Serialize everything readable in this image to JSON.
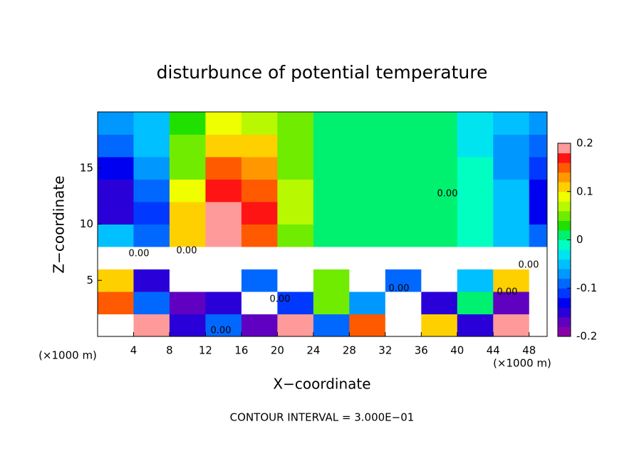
{
  "chart_data": {
    "type": "contour",
    "title": "disturbunce of potential temperature",
    "x_label": "X−coordinate",
    "y_label": "Z−coordinate",
    "x_unit_labels": [
      "(×1000 m)",
      "(×1000 m)"
    ],
    "footer": "CONTOUR INTERVAL = 3.000E−01",
    "contour_labels": [
      "0.00",
      "0.00",
      "0.00",
      "0.00",
      "0.00",
      "0.00",
      "0.00",
      "0.00"
    ],
    "xlim": [
      0,
      50
    ],
    "xticks": [
      4,
      8,
      12,
      16,
      20,
      24,
      28,
      32,
      36,
      40,
      44,
      48
    ],
    "ylim": [
      0,
      20
    ],
    "yticks": [
      5,
      10,
      15
    ],
    "clim": [
      -0.2,
      0.2
    ],
    "cticks": [
      -0.2,
      -0.1,
      0,
      0.1,
      0.2
    ],
    "colors": [
      "#8a00a8",
      "#6000c0",
      "#2a00d8",
      "#0000f0",
      "#0038ff",
      "#0068ff",
      "#0098ff",
      "#00c0ff",
      "#00e4f0",
      "#00ffc0",
      "#00f070",
      "#20e000",
      "#70ec00",
      "#b8f800",
      "#f0ff00",
      "#ffd000",
      "#ff9800",
      "#ff5a00",
      "#ff1414",
      "#ff9a9a"
    ],
    "out_of_range_color": "#ffffff",
    "x": [
      2,
      6,
      10,
      14,
      18,
      22,
      26,
      30,
      34,
      38,
      42,
      46,
      50
    ],
    "y": [
      1,
      3,
      5,
      7,
      9,
      11,
      13,
      15,
      17,
      19
    ],
    "z": [
      [
        0.3,
        0.2,
        -0.15,
        -0.1,
        -0.18,
        0.2,
        -0.1,
        0.15,
        0.3,
        0.1,
        -0.15,
        0.2,
        0.3
      ],
      [
        0.15,
        -0.1,
        -0.18,
        -0.15,
        0.3,
        -0.12,
        0.05,
        -0.08,
        0.3,
        -0.15,
        0.02,
        -0.18,
        0.3
      ],
      [
        0.1,
        -0.15,
        0.3,
        0.3,
        -0.1,
        0.3,
        0.05,
        0.3,
        -0.1,
        0.3,
        -0.05,
        0.1,
        0.3
      ],
      [
        0.3,
        0.3,
        0.3,
        0.3,
        0.3,
        0.3,
        0.3,
        0.3,
        0.3,
        0.3,
        0.3,
        0.3,
        0.3
      ],
      [
        -0.05,
        -0.1,
        0.12,
        0.2,
        0.15,
        0.05,
        0.01,
        0,
        0,
        0,
        -0.01,
        -0.04,
        -0.1
      ],
      [
        -0.16,
        -0.12,
        0.1,
        0.19,
        0.16,
        0.06,
        0.02,
        0,
        0.01,
        0,
        -0.01,
        -0.05,
        -0.14
      ],
      [
        -0.15,
        -0.1,
        0.08,
        0.17,
        0.15,
        0.06,
        0.02,
        0.01,
        0.01,
        0,
        -0.02,
        -0.06,
        -0.13
      ],
      [
        -0.14,
        -0.08,
        0.05,
        0.15,
        0.13,
        0.05,
        0.02,
        0.01,
        0.01,
        0,
        -0.02,
        -0.07,
        -0.12
      ],
      [
        -0.1,
        -0.05,
        0.04,
        0.12,
        0.1,
        0.05,
        0.01,
        0,
        0,
        0,
        -0.03,
        -0.07,
        -0.1
      ],
      [
        -0.08,
        -0.06,
        0.03,
        0.09,
        0.07,
        0.04,
        0,
        0,
        0,
        0,
        -0.03,
        -0.06,
        -0.08
      ]
    ]
  }
}
